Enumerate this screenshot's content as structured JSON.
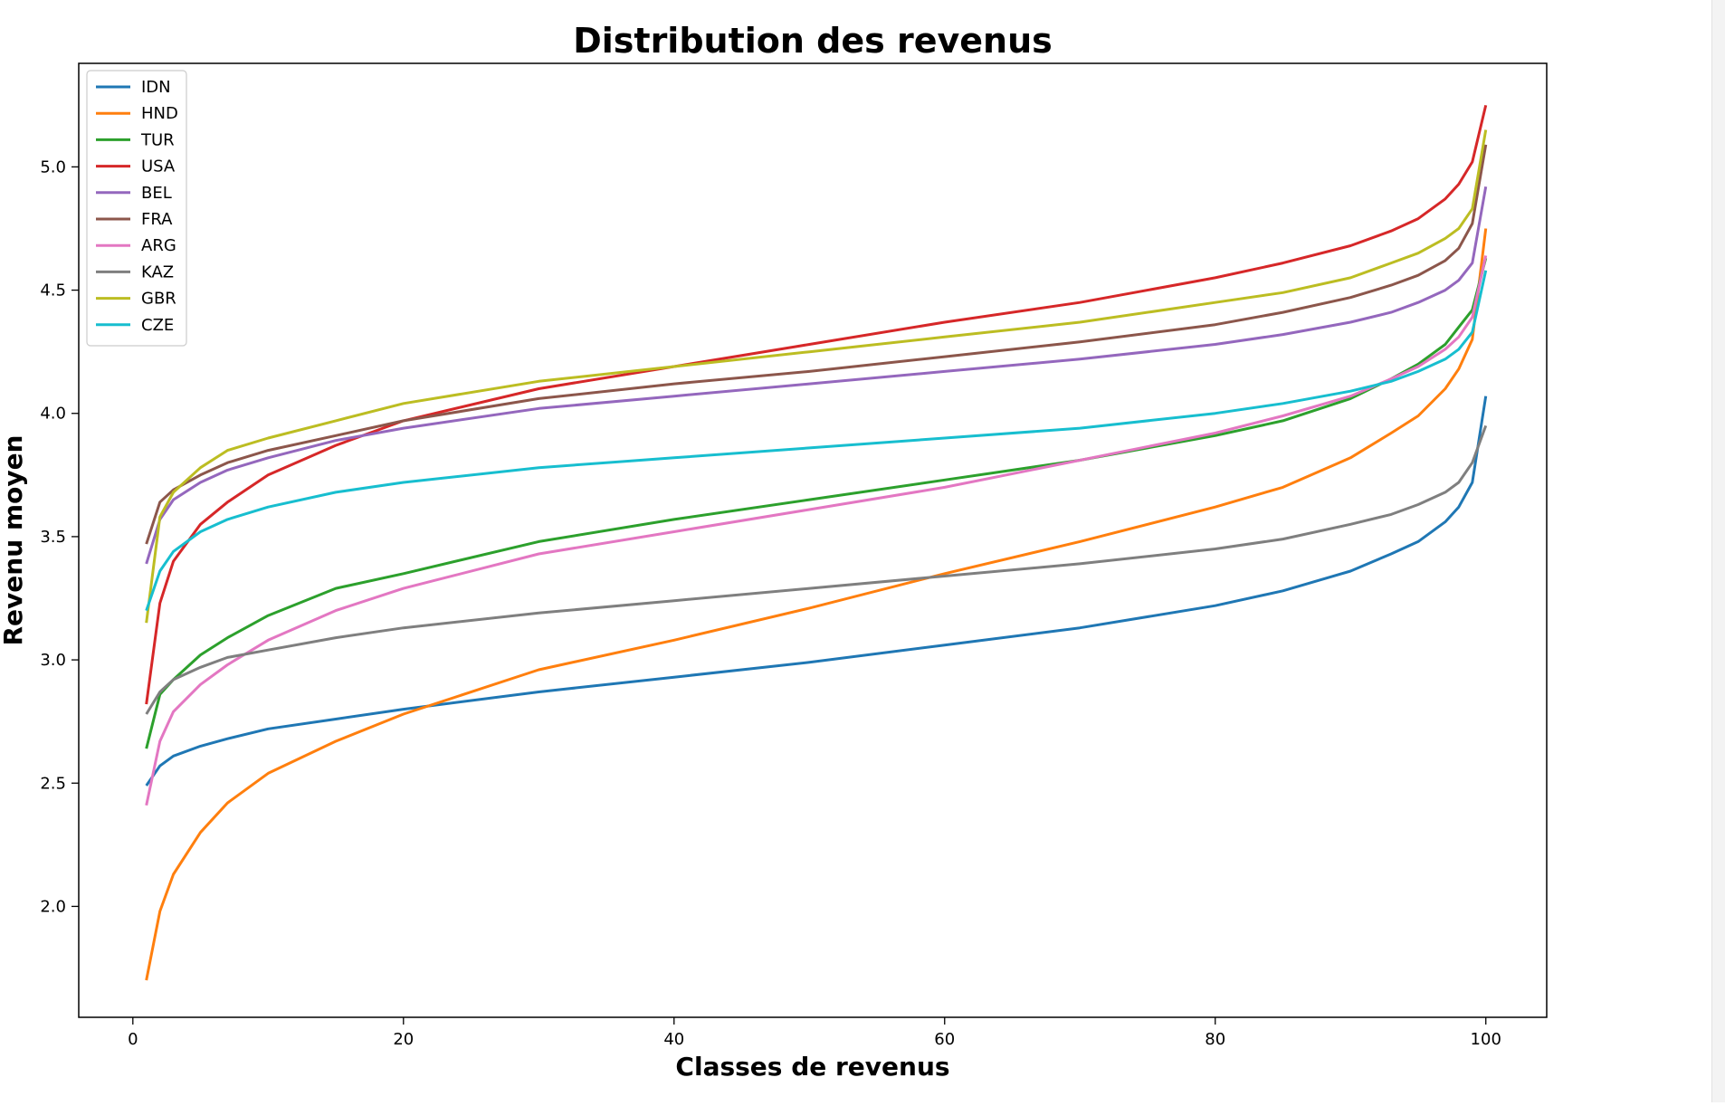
{
  "chart_data": {
    "type": "line",
    "title": "Distribution des revenus",
    "xlabel": "Classes de revenus",
    "ylabel": "Revenu moyen",
    "xlim": [
      -4,
      104.5
    ],
    "ylim": [
      1.55,
      5.42
    ],
    "xticks": [
      0,
      20,
      40,
      60,
      80,
      100
    ],
    "yticks": [
      2.0,
      2.5,
      3.0,
      3.5,
      4.0,
      4.5,
      5.0
    ],
    "grid": false,
    "legend": "top-left",
    "x": [
      1,
      2,
      3,
      5,
      7,
      10,
      15,
      20,
      30,
      40,
      50,
      60,
      70,
      80,
      85,
      90,
      93,
      95,
      97,
      98,
      99,
      100
    ],
    "series": [
      {
        "name": "IDN",
        "color": "#1f77b4",
        "values": [
          2.49,
          2.57,
          2.61,
          2.65,
          2.68,
          2.72,
          2.76,
          2.8,
          2.87,
          2.93,
          2.99,
          3.06,
          3.13,
          3.22,
          3.28,
          3.36,
          3.43,
          3.48,
          3.56,
          3.62,
          3.72,
          4.07
        ]
      },
      {
        "name": "HND",
        "color": "#ff7f0e",
        "values": [
          1.7,
          1.98,
          2.13,
          2.3,
          2.42,
          2.54,
          2.67,
          2.78,
          2.96,
          3.08,
          3.21,
          3.35,
          3.48,
          3.62,
          3.7,
          3.82,
          3.92,
          3.99,
          4.1,
          4.18,
          4.3,
          4.75
        ]
      },
      {
        "name": "TUR",
        "color": "#2ca02c",
        "values": [
          2.64,
          2.86,
          2.92,
          3.02,
          3.09,
          3.18,
          3.29,
          3.35,
          3.48,
          3.57,
          3.65,
          3.73,
          3.81,
          3.91,
          3.97,
          4.06,
          4.14,
          4.2,
          4.28,
          4.35,
          4.42,
          4.63
        ]
      },
      {
        "name": "USA",
        "color": "#d62728",
        "values": [
          2.82,
          3.23,
          3.4,
          3.55,
          3.64,
          3.75,
          3.87,
          3.97,
          4.1,
          4.19,
          4.28,
          4.37,
          4.45,
          4.55,
          4.61,
          4.68,
          4.74,
          4.79,
          4.87,
          4.93,
          5.02,
          5.25
        ]
      },
      {
        "name": "BEL",
        "color": "#9467bd",
        "values": [
          3.39,
          3.57,
          3.65,
          3.72,
          3.77,
          3.82,
          3.89,
          3.94,
          4.02,
          4.07,
          4.12,
          4.17,
          4.22,
          4.28,
          4.32,
          4.37,
          4.41,
          4.45,
          4.5,
          4.54,
          4.61,
          4.92
        ]
      },
      {
        "name": "FRA",
        "color": "#8c564b",
        "values": [
          3.47,
          3.64,
          3.69,
          3.75,
          3.8,
          3.85,
          3.91,
          3.97,
          4.06,
          4.12,
          4.17,
          4.23,
          4.29,
          4.36,
          4.41,
          4.47,
          4.52,
          4.56,
          4.62,
          4.67,
          4.77,
          5.09
        ]
      },
      {
        "name": "ARG",
        "color": "#e377c2",
        "values": [
          2.41,
          2.67,
          2.79,
          2.9,
          2.98,
          3.08,
          3.2,
          3.29,
          3.43,
          3.52,
          3.61,
          3.7,
          3.81,
          3.92,
          3.99,
          4.07,
          4.14,
          4.19,
          4.26,
          4.31,
          4.39,
          4.64
        ]
      },
      {
        "name": "KAZ",
        "color": "#7f7f7f",
        "values": [
          2.78,
          2.87,
          2.92,
          2.97,
          3.01,
          3.04,
          3.09,
          3.13,
          3.19,
          3.24,
          3.29,
          3.34,
          3.39,
          3.45,
          3.49,
          3.55,
          3.59,
          3.63,
          3.68,
          3.72,
          3.8,
          3.95
        ]
      },
      {
        "name": "GBR",
        "color": "#bcbd22",
        "values": [
          3.15,
          3.58,
          3.68,
          3.78,
          3.85,
          3.9,
          3.97,
          4.04,
          4.13,
          4.19,
          4.25,
          4.31,
          4.37,
          4.45,
          4.49,
          4.55,
          4.61,
          4.65,
          4.71,
          4.75,
          4.83,
          5.15
        ]
      },
      {
        "name": "CZE",
        "color": "#17becf",
        "values": [
          3.2,
          3.36,
          3.44,
          3.52,
          3.57,
          3.62,
          3.68,
          3.72,
          3.78,
          3.82,
          3.86,
          3.9,
          3.94,
          4.0,
          4.04,
          4.09,
          4.13,
          4.17,
          4.22,
          4.26,
          4.33,
          4.58
        ]
      }
    ]
  }
}
